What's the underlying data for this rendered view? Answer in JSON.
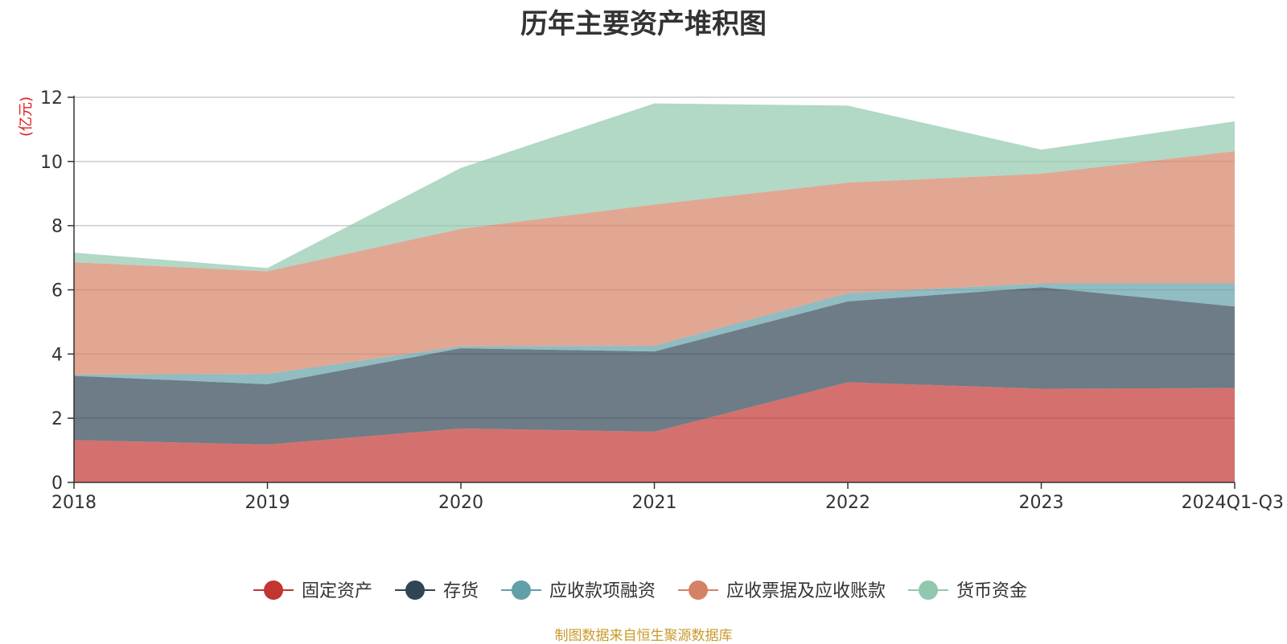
{
  "chart_data": {
    "type": "area",
    "stacked": true,
    "title": "历年主要资产堆积图",
    "ylabel": "(亿元)",
    "xlabel": "",
    "categories": [
      "2018",
      "2019",
      "2020",
      "2021",
      "2022",
      "2023",
      "2024Q1-Q3"
    ],
    "ylim": [
      0,
      12
    ],
    "yticks": [
      0,
      2,
      4,
      6,
      8,
      10,
      12
    ],
    "grid": true,
    "legend_position": "bottom",
    "series": [
      {
        "name": "固定资产",
        "color": "#c23531",
        "values": [
          1.32,
          1.18,
          1.68,
          1.58,
          3.12,
          2.92,
          2.94
        ]
      },
      {
        "name": "存货",
        "color": "#2f4554",
        "values": [
          2.0,
          1.88,
          2.5,
          2.5,
          2.52,
          3.16,
          2.54
        ]
      },
      {
        "name": "应收款项融资",
        "color": "#61a0a8",
        "values": [
          0.04,
          0.32,
          0.06,
          0.18,
          0.26,
          0.12,
          0.72
        ]
      },
      {
        "name": "应收票据及应收账款",
        "color": "#d48265",
        "values": [
          3.5,
          3.2,
          3.66,
          4.4,
          3.44,
          3.42,
          4.12
        ]
      },
      {
        "name": "货币资金",
        "color": "#91c7ae",
        "values": [
          0.3,
          0.1,
          1.9,
          3.15,
          2.4,
          0.75,
          0.93
        ]
      }
    ]
  },
  "source_note": "制图数据来自恒生聚源数据库"
}
